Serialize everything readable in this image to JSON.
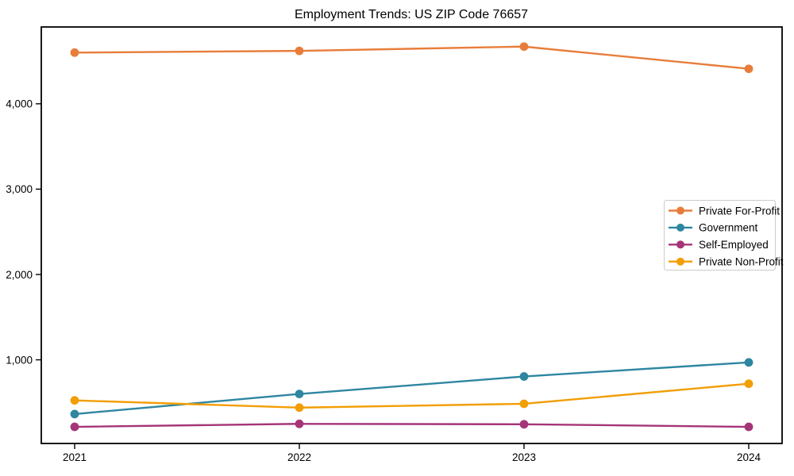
{
  "window": {
    "background_color": "#ffffff",
    "axis_color": "#000000",
    "legend_border_color": "#cccccc"
  },
  "chart_data": {
    "type": "line",
    "title": "Employment Trends: US ZIP Code 76657",
    "xlabel": "",
    "ylabel": "",
    "categories": [
      "2021",
      "2022",
      "2023",
      "2024"
    ],
    "series": [
      {
        "name": "Private For-Profit",
        "color": "#E87D3B",
        "values": [
          4600,
          4620,
          4670,
          4410
        ]
      },
      {
        "name": "Government",
        "color": "#2E86A0",
        "values": [
          365,
          600,
          805,
          970
        ]
      },
      {
        "name": "Self-Employed",
        "color": "#A53578",
        "values": [
          215,
          250,
          245,
          215
        ]
      },
      {
        "name": "Private Non-Profit",
        "color": "#F29E06",
        "values": [
          525,
          440,
          485,
          720
        ]
      }
    ],
    "ylim": [
      20,
      4900
    ],
    "ytick_values": [
      1000,
      2000,
      3000,
      4000
    ],
    "ytick_labels": [
      "1,000",
      "2,000",
      "3,000",
      "4,000"
    ],
    "grid": false,
    "legend_position": "center-right",
    "marker": "circle"
  }
}
